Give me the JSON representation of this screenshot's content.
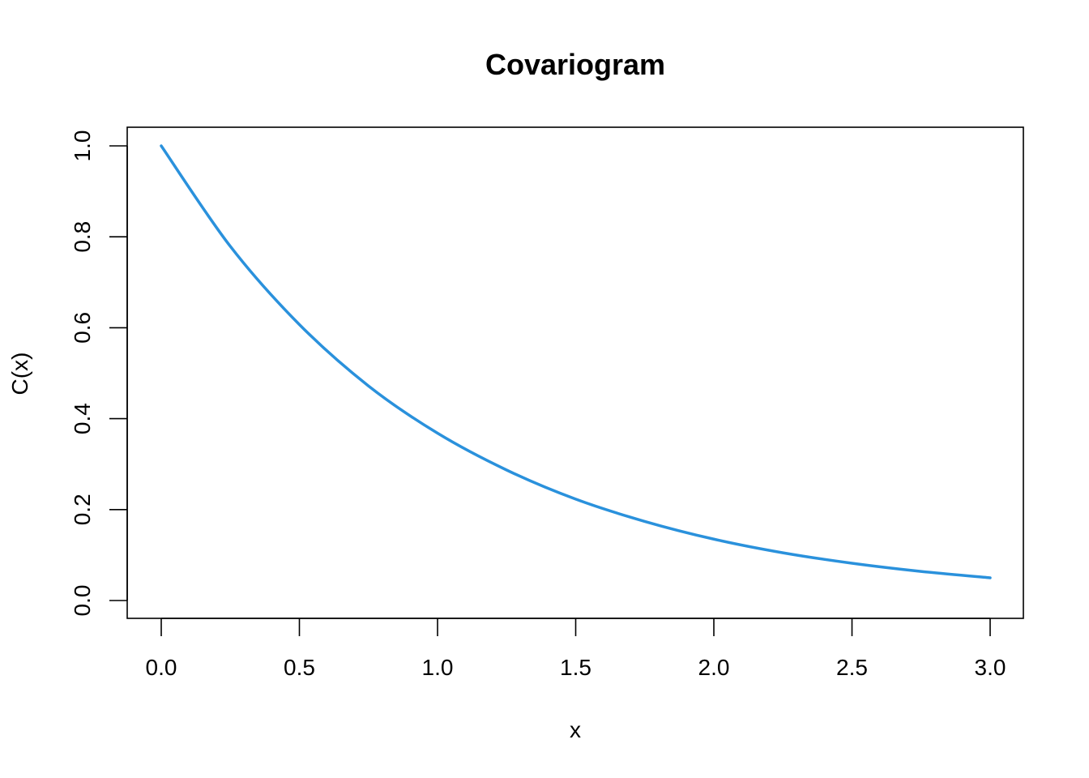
{
  "chart_data": {
    "type": "line",
    "title": "Covariogram",
    "xlabel": "x",
    "ylabel": "C(x)",
    "xlim": [
      0,
      3
    ],
    "ylim": [
      0,
      1
    ],
    "x_ticks": [
      "0.0",
      "0.5",
      "1.0",
      "1.5",
      "2.0",
      "2.5",
      "3.0"
    ],
    "y_ticks": [
      "0.0",
      "0.2",
      "0.4",
      "0.6",
      "0.8",
      "1.0"
    ],
    "grid": false,
    "series": [
      {
        "color": "#2a91dc",
        "x": [
          0.0,
          0.25,
          0.5,
          0.75,
          1.0,
          1.25,
          1.5,
          1.75,
          2.0,
          2.25,
          2.5,
          2.75,
          3.0
        ],
        "y": [
          1.0,
          0.779,
          0.607,
          0.472,
          0.368,
          0.287,
          0.223,
          0.174,
          0.135,
          0.105,
          0.082,
          0.064,
          0.05
        ]
      }
    ]
  }
}
